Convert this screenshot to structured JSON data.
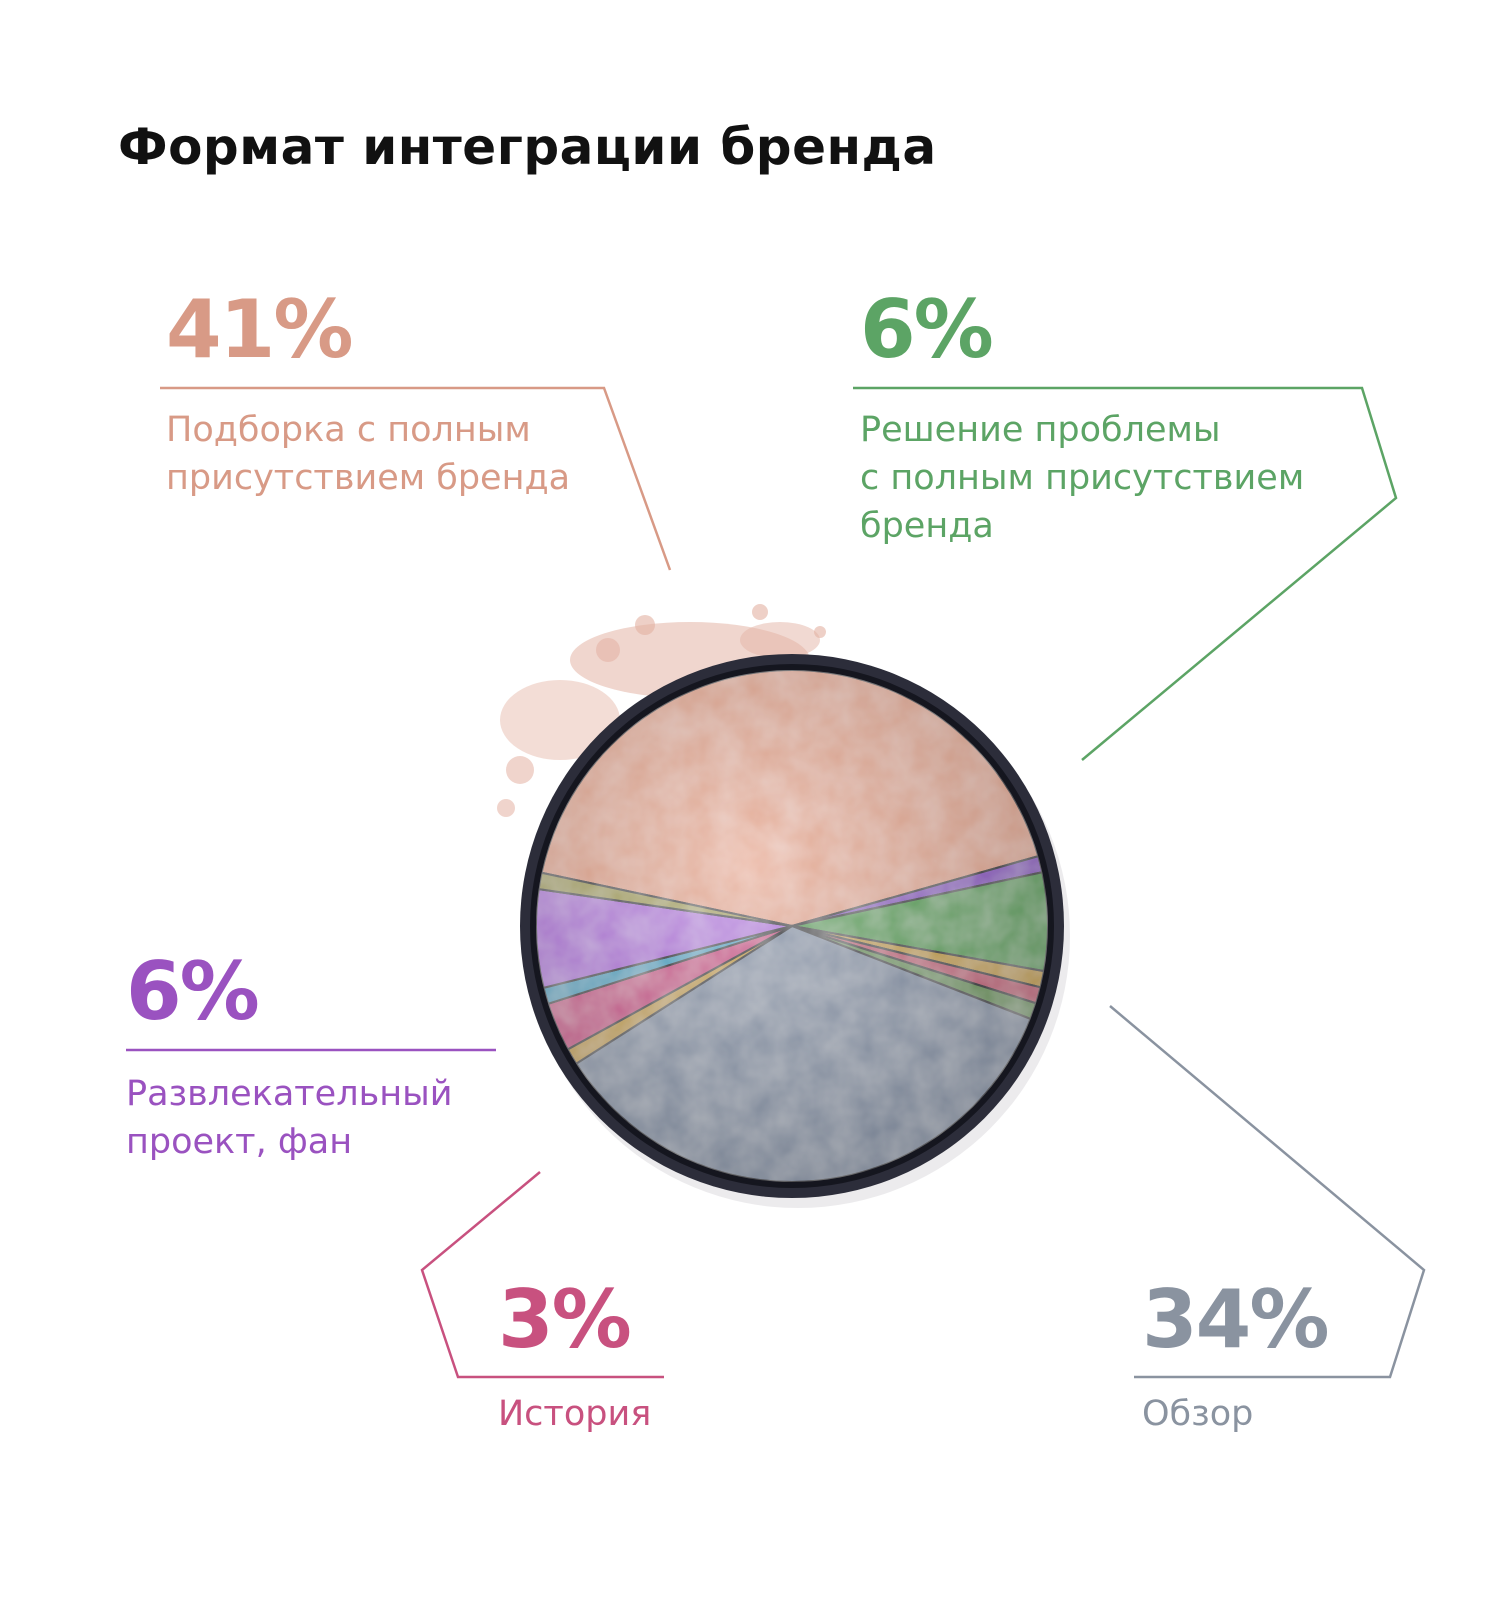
{
  "title": "Формат интеграции бренда",
  "colors": {
    "peach": "#d89a86",
    "green": "#5ca465",
    "purple": "#9a52c0",
    "pink": "#c8517f",
    "gray": "#8a93a0"
  },
  "callouts": [
    {
      "id": "podborka",
      "percent": "41%",
      "label_lines": [
        "Подборка с полным",
        "присутствием бренда"
      ],
      "color": "#d89a86"
    },
    {
      "id": "reshenie",
      "percent": "6%",
      "label_lines": [
        "Решение проблемы",
        "с полным присутствием",
        "бренда"
      ],
      "color": "#5ca465"
    },
    {
      "id": "razvlek",
      "percent": "6%",
      "label_lines": [
        "Развлекательный",
        "проект, фан"
      ],
      "color": "#9a52c0"
    },
    {
      "id": "istoriya",
      "percent": "3%",
      "label_lines": [
        "История"
      ],
      "color": "#c8517f"
    },
    {
      "id": "obzor",
      "percent": "34%",
      "label_lines": [
        "Обзор"
      ],
      "color": "#8a93a0"
    }
  ],
  "chart_data": {
    "type": "pie",
    "title": "Формат интеграции бренда",
    "slices": [
      {
        "label": "Подборка с полным присутствием бренда",
        "value": 41,
        "color": "#e7a890"
      },
      {
        "label": "",
        "value": 1,
        "color": "#8f55c8"
      },
      {
        "label": "Решение проблемы с полным присутствием бренда",
        "value": 6,
        "color": "#4fa14e"
      },
      {
        "label": "",
        "value": 1,
        "color": "#c9a23a"
      },
      {
        "label": "",
        "value": 1,
        "color": "#c85d78"
      },
      {
        "label": "",
        "value": 1,
        "color": "#6d9a5a"
      },
      {
        "label": "Обзор",
        "value": 34,
        "color": "#8996ab"
      },
      {
        "label": "",
        "value": 1,
        "color": "#c9a23a"
      },
      {
        "label": "История",
        "value": 3,
        "color": "#d04f8c"
      },
      {
        "label": "",
        "value": 1,
        "color": "#4aa8c8"
      },
      {
        "label": "Развлекательный проект, фан",
        "value": 6,
        "color": "#b574e0"
      },
      {
        "label": "",
        "value": 1,
        "color": "#a7a252"
      }
    ]
  }
}
